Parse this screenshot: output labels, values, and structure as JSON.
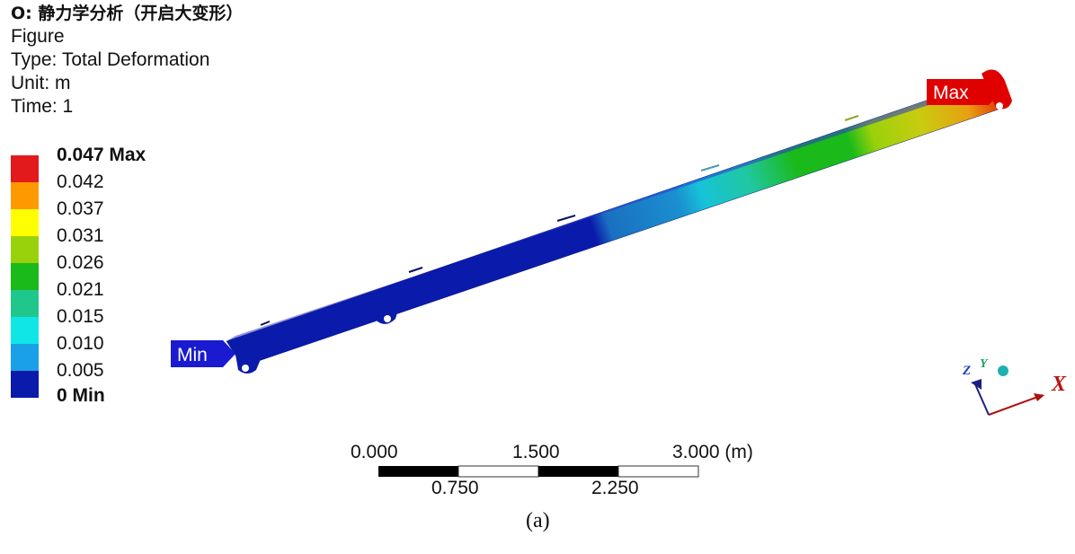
{
  "header": {
    "title": "O: 静力学分析（开启大变形）",
    "figure": "Figure",
    "type": "Type: Total Deformation",
    "unit": "Unit: m",
    "time": "Time: 1"
  },
  "legend": {
    "items": [
      {
        "label": "0.047 Max",
        "color": "#e31a1c"
      },
      {
        "label": "0.042",
        "color": "#ff9900"
      },
      {
        "label": "0.037",
        "color": "#ffff00"
      },
      {
        "label": "0.031",
        "color": "#99d10a"
      },
      {
        "label": "0.026",
        "color": "#1aba1a"
      },
      {
        "label": "0.021",
        "color": "#20c78d"
      },
      {
        "label": "0.015",
        "color": "#10e6e6"
      },
      {
        "label": "0.010",
        "color": "#1aa0e6"
      },
      {
        "label": "0.005",
        "color": "#0a1aaa"
      }
    ],
    "last_label": "0 Min"
  },
  "probes": {
    "min_label": "Min",
    "max_label": "Max",
    "min_color": "#1a1ad0",
    "max_color": "#e00000"
  },
  "scale_bar": {
    "top_labels": [
      "0.000",
      "1.500",
      "3.000 (m)"
    ],
    "bottom_labels": [
      "0.750",
      "2.250"
    ]
  },
  "triad": {
    "x": "X",
    "y": "Y",
    "z": "Z"
  },
  "caption": "(a)"
}
